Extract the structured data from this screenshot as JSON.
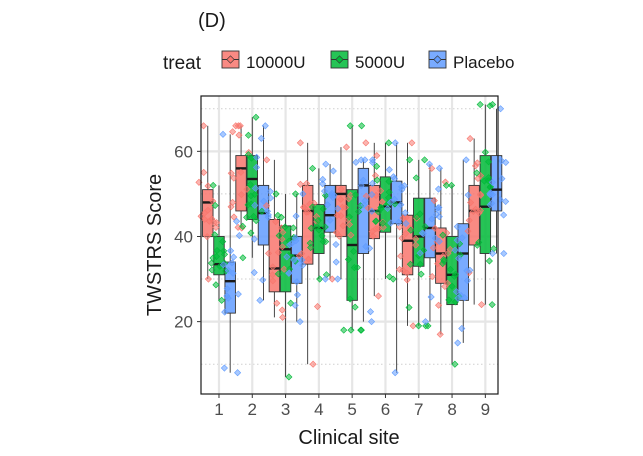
{
  "panel_label": "(D)",
  "colors": {
    "10000U": "#F8766D",
    "5000U": "#00BA38",
    "Placebo": "#619CFF",
    "panel_border": "#1a1a1a",
    "grid_major": "#e6e6e6",
    "grid_minor": "#cfcfcf"
  },
  "chart_data": {
    "type": "box",
    "title": "(D)",
    "xlabel": "Clinical site",
    "ylabel": "TWSTRS Score",
    "legend_title": "treat",
    "legend_position": "top",
    "categories": [
      "1",
      "2",
      "3",
      "4",
      "5",
      "6",
      "7",
      "8",
      "9"
    ],
    "ylim": [
      3,
      73
    ],
    "yticks": [
      20,
      40,
      60
    ],
    "series": [
      {
        "name": "10000U",
        "boxes": [
          {
            "min": 30,
            "q1": 40,
            "median": 48,
            "q3": 51,
            "max": 66
          },
          {
            "min": 42,
            "q1": 46,
            "median": 56,
            "q3": 59,
            "max": 66
          },
          {
            "min": 21,
            "q1": 27,
            "median": 32.5,
            "q3": 44,
            "max": 58
          },
          {
            "min": 10,
            "q1": 33.5,
            "median": 46,
            "q3": 52,
            "max": 62
          },
          {
            "min": 30,
            "q1": 40,
            "median": 50,
            "q3": 52,
            "max": 61
          },
          {
            "min": 26,
            "q1": 39.5,
            "median": 46,
            "q3": 52,
            "max": 62
          },
          {
            "min": 19,
            "q1": 31,
            "median": 39,
            "q3": 45,
            "max": 62
          },
          {
            "min": 17,
            "q1": 29,
            "median": 36,
            "q3": 42,
            "max": 56
          },
          {
            "min": 24,
            "q1": 38,
            "median": 46,
            "q3": 52,
            "max": 63
          }
        ]
      },
      {
        "name": "5000U",
        "boxes": [
          {
            "min": 25,
            "q1": 31,
            "median": 33.5,
            "q3": 40,
            "max": 52
          },
          {
            "min": 35,
            "q1": 44,
            "median": 53.5,
            "q3": 59,
            "max": 68
          },
          {
            "min": 7,
            "q1": 27,
            "median": 37,
            "q3": 42.5,
            "max": 50
          },
          {
            "min": 30,
            "q1": 36,
            "median": 42,
            "q3": 47.5,
            "max": 56
          },
          {
            "min": 18,
            "q1": 25,
            "median": 38,
            "q3": 51,
            "max": 66
          },
          {
            "min": 30,
            "q1": 41,
            "median": 47,
            "q3": 54,
            "max": 62
          },
          {
            "min": 19,
            "q1": 33,
            "median": 40,
            "q3": 49,
            "max": 58
          },
          {
            "min": 10,
            "q1": 24,
            "median": 31,
            "q3": 40,
            "max": 52
          },
          {
            "min": 24,
            "q1": 36,
            "median": 47,
            "q3": 59,
            "max": 71
          }
        ]
      },
      {
        "name": "Placebo",
        "boxes": [
          {
            "min": 8,
            "q1": 22,
            "median": 29.5,
            "q3": 34,
            "max": 64
          },
          {
            "min": 25,
            "q1": 38,
            "median": 45.5,
            "q3": 52,
            "max": 66
          },
          {
            "min": 20,
            "q1": 29,
            "median": 35.5,
            "q3": 40,
            "max": 50
          },
          {
            "min": 30,
            "q1": 41,
            "median": 45,
            "q3": 52,
            "max": 57
          },
          {
            "min": 20,
            "q1": 36,
            "median": 52,
            "q3": 56,
            "max": 58
          },
          {
            "min": 8,
            "q1": 43,
            "median": 48,
            "q3": 53,
            "max": 62
          },
          {
            "min": 20,
            "q1": 35,
            "median": 42,
            "q3": 49,
            "max": 57
          },
          {
            "min": 15,
            "q1": 25,
            "median": 36,
            "q3": 43,
            "max": 58
          },
          {
            "min": 36,
            "q1": 46,
            "median": 51,
            "q3": 59,
            "max": 70
          }
        ]
      }
    ]
  }
}
